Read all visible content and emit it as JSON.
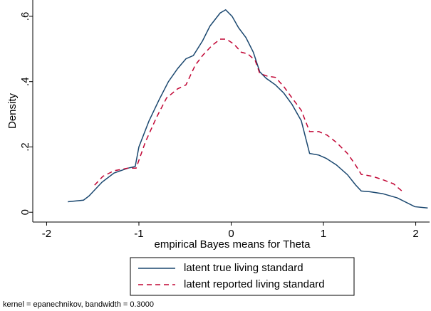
{
  "chart_data": {
    "type": "line",
    "xlabel": "empirical Bayes means for Theta",
    "ylabel": "Density",
    "note": "kernel = epanechnikov, bandwidth = 0.3000",
    "xlim": [
      -2.15,
      2.15
    ],
    "xticks": [
      -2,
      -1,
      0,
      1,
      2
    ],
    "ylim": [
      -0.03,
      0.65
    ],
    "yticks": [
      0,
      {
        "value": 0.2,
        "label": ".2"
      },
      {
        "value": 0.4,
        "label": ".4"
      },
      {
        "value": 0.6,
        "label": ".6"
      }
    ],
    "series": [
      {
        "name": "latent true living standard",
        "color": "#1a476f",
        "dash": false,
        "x": [
          -1.77,
          -1.6,
          -1.54,
          -1.4,
          -1.27,
          -1.12,
          -1.04,
          -1.0,
          -0.89,
          -0.78,
          -0.68,
          -0.58,
          -0.49,
          -0.41,
          -0.31,
          -0.23,
          -0.12,
          -0.06,
          0.01,
          0.08,
          0.16,
          0.24,
          0.31,
          0.38,
          0.48,
          0.57,
          0.66,
          0.76,
          0.85,
          0.95,
          1.03,
          1.14,
          1.26,
          1.35,
          1.41,
          1.5,
          1.64,
          1.8,
          1.99,
          2.13
        ],
        "values": [
          0.032,
          0.037,
          0.05,
          0.092,
          0.12,
          0.135,
          0.14,
          0.2,
          0.28,
          0.345,
          0.4,
          0.44,
          0.47,
          0.48,
          0.525,
          0.57,
          0.61,
          0.62,
          0.6,
          0.565,
          0.535,
          0.49,
          0.43,
          0.41,
          0.39,
          0.365,
          0.33,
          0.28,
          0.18,
          0.175,
          0.165,
          0.145,
          0.115,
          0.083,
          0.065,
          0.063,
          0.057,
          0.044,
          0.017,
          0.013
        ]
      },
      {
        "name": "latent reported living standard",
        "color": "#c10534",
        "dash": true,
        "x": [
          -1.48,
          -1.39,
          -1.27,
          -1.12,
          -1.03,
          -0.93,
          -0.81,
          -0.7,
          -0.58,
          -0.49,
          -0.39,
          -0.31,
          -0.21,
          -0.12,
          -0.05,
          0.03,
          0.11,
          0.18,
          0.26,
          0.31,
          0.39,
          0.48,
          0.57,
          0.66,
          0.76,
          0.85,
          0.95,
          1.04,
          1.14,
          1.26,
          1.34,
          1.41,
          1.53,
          1.64,
          1.76,
          1.85
        ],
        "values": [
          0.083,
          0.11,
          0.127,
          0.135,
          0.135,
          0.215,
          0.29,
          0.35,
          0.378,
          0.39,
          0.45,
          0.48,
          0.51,
          0.53,
          0.53,
          0.515,
          0.49,
          0.485,
          0.465,
          0.425,
          0.417,
          0.413,
          0.385,
          0.35,
          0.312,
          0.247,
          0.247,
          0.236,
          0.214,
          0.18,
          0.148,
          0.116,
          0.11,
          0.1,
          0.087,
          0.065
        ]
      }
    ]
  }
}
